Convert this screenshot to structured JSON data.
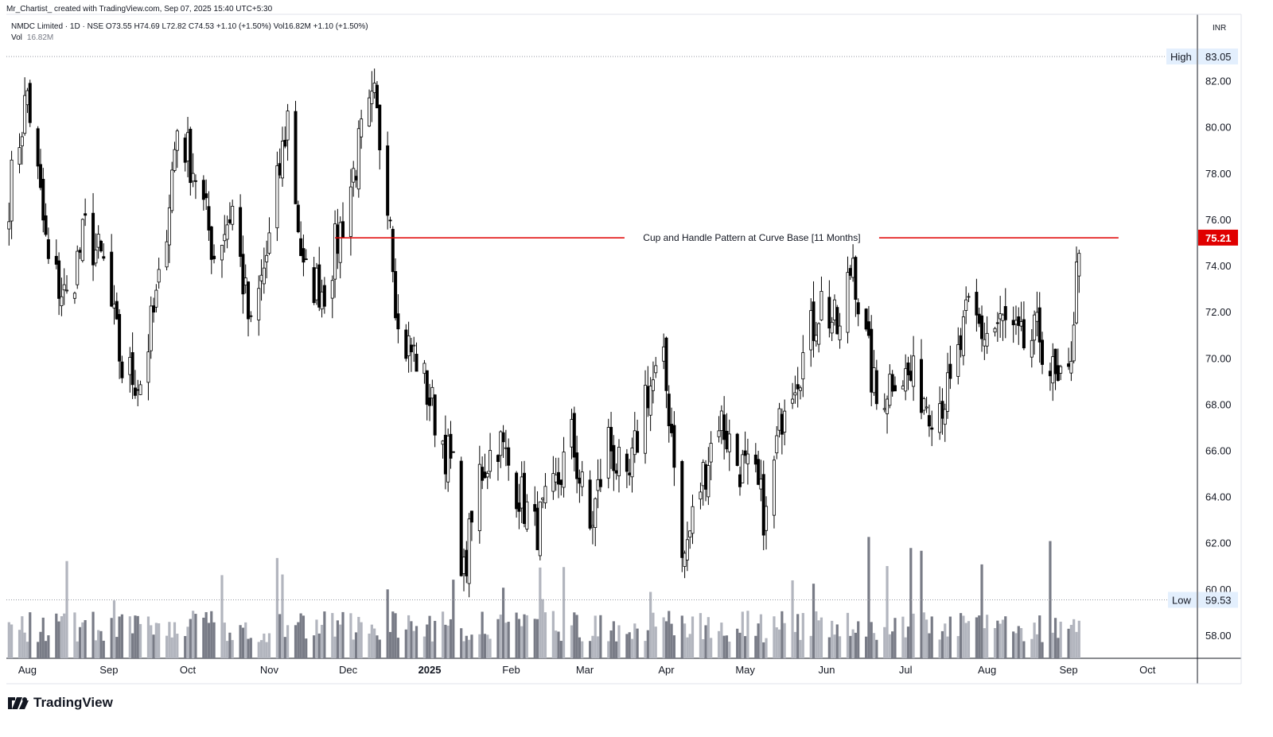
{
  "header": {
    "credit": "Mr_Chartist_ created with TradingView.com, Sep 07, 2025 15:40 UTC+5:30",
    "symbol_line": "NMDC Limited · 1D · NSE  O73.55  H74.69  L72.82  C74.53  +1.10 (+1.50%)  Vol16.82M  +1.10 (+1.50%)",
    "vol_label": "Vol",
    "vol_value": "16.82M"
  },
  "price_scale": {
    "currency": "INR"
  },
  "brand": {
    "name": "TradingView",
    "icon": "tradingview-logo-icon"
  },
  "colors": {
    "up_candle_fill": "#ffffff",
    "down_candle_fill": "#000000",
    "candle_border": "#000000",
    "volume_up": "#b2b5be",
    "volume_down": "#787b86",
    "annotation_line": "#e00000",
    "last_price_badge": "#e00000",
    "high_low_badge": "#e3effd"
  },
  "chart_data": {
    "type": "candlestick",
    "title": "NMDC Limited · 1D · NSE",
    "ylim": [
      57,
      83.5
    ],
    "y_ticks": [
      "58.00",
      "60.00",
      "62.00",
      "64.00",
      "66.00",
      "68.00",
      "70.00",
      "72.00",
      "74.00",
      "76.00",
      "78.00",
      "80.00",
      "82.00"
    ],
    "x_ticks": [
      "Aug",
      "Sep",
      "Oct",
      "Nov",
      "Dec",
      "2025",
      "Feb",
      "Mar",
      "Apr",
      "May",
      "Jun",
      "Jul",
      "Aug",
      "Sep",
      "Oct"
    ],
    "high": {
      "label": "High",
      "value": "83.05"
    },
    "low": {
      "label": "Low",
      "value": "59.53"
    },
    "last_price": "75.21",
    "annotation": {
      "text": "Cup and Handle Pattern at Curve Base [11 Months]",
      "level": 75.2,
      "from": "2024-11-26",
      "to": "2025-06-10",
      "extends_to": "2025-09-20"
    },
    "ohlc_anchor_closes": [
      [
        "2024-07-25",
        77.0
      ],
      [
        "2024-08-01",
        81.5
      ],
      [
        "2024-08-09",
        74.0
      ],
      [
        "2024-08-16",
        72.5
      ],
      [
        "2024-08-23",
        75.5
      ],
      [
        "2024-08-30",
        74.0
      ],
      [
        "2024-09-06",
        69.5
      ],
      [
        "2024-09-13",
        69.0
      ],
      [
        "2024-09-20",
        73.0
      ],
      [
        "2024-09-27",
        80.0
      ],
      [
        "2024-10-04",
        78.0
      ],
      [
        "2024-10-11",
        74.5
      ],
      [
        "2024-10-18",
        76.5
      ],
      [
        "2024-10-25",
        71.0
      ],
      [
        "2024-11-01",
        75.0
      ],
      [
        "2024-11-08",
        80.5
      ],
      [
        "2024-11-14",
        73.5
      ],
      [
        "2024-11-22",
        73.0
      ],
      [
        "2024-11-29",
        76.0
      ],
      [
        "2024-12-06",
        79.5
      ],
      [
        "2024-12-11",
        81.0
      ],
      [
        "2024-12-17",
        76.5
      ],
      [
        "2024-12-20",
        71.0
      ],
      [
        "2024-12-27",
        70.0
      ],
      [
        "2025-01-03",
        67.5
      ],
      [
        "2025-01-10",
        65.0
      ],
      [
        "2025-01-14",
        60.5
      ],
      [
        "2025-01-20",
        65.0
      ],
      [
        "2025-01-27",
        66.5
      ],
      [
        "2025-02-03",
        64.5
      ],
      [
        "2025-02-10",
        62.5
      ],
      [
        "2025-02-17",
        64.0
      ],
      [
        "2025-02-24",
        66.5
      ],
      [
        "2025-03-03",
        62.5
      ],
      [
        "2025-03-10",
        66.5
      ],
      [
        "2025-03-17",
        64.0
      ],
      [
        "2025-03-24",
        68.5
      ],
      [
        "2025-03-31",
        69.5
      ],
      [
        "2025-04-04",
        66.0
      ],
      [
        "2025-04-07",
        61.0
      ],
      [
        "2025-04-14",
        64.5
      ],
      [
        "2025-04-21",
        67.5
      ],
      [
        "2025-04-28",
        65.5
      ],
      [
        "2025-05-05",
        64.5
      ],
      [
        "2025-05-09",
        63.0
      ],
      [
        "2025-05-16",
        68.5
      ],
      [
        "2025-05-23",
        70.0
      ],
      [
        "2025-05-30",
        72.5
      ],
      [
        "2025-06-06",
        71.0
      ],
      [
        "2025-06-11",
        74.5
      ],
      [
        "2025-06-13",
        72.5
      ],
      [
        "2025-06-20",
        68.0
      ],
      [
        "2025-06-27",
        69.5
      ],
      [
        "2025-07-04",
        69.0
      ],
      [
        "2025-07-11",
        68.0
      ],
      [
        "2025-07-18",
        68.5
      ],
      [
        "2025-07-25",
        72.0
      ],
      [
        "2025-07-31",
        71.0
      ],
      [
        "2025-08-07",
        71.5
      ],
      [
        "2025-08-14",
        70.5
      ],
      [
        "2025-08-21",
        71.0
      ],
      [
        "2025-08-28",
        68.5
      ],
      [
        "2025-09-01",
        69.0
      ],
      [
        "2025-09-04",
        73.5
      ],
      [
        "2025-09-05",
        74.53
      ]
    ]
  }
}
